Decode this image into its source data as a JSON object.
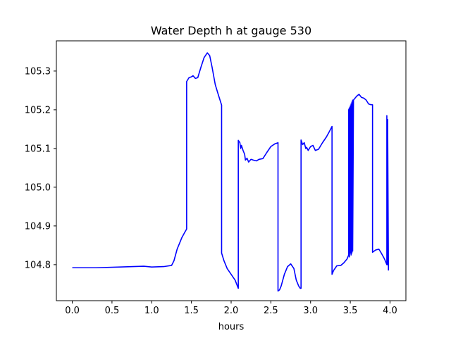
{
  "chart_data": {
    "type": "line",
    "title": "Water Depth h at gauge 530",
    "xlabel": "hours",
    "ylabel": "",
    "xlim": [
      -0.2,
      4.2
    ],
    "ylim": [
      104.707,
      105.378
    ],
    "xticks": [
      0.0,
      0.5,
      1.0,
      1.5,
      2.0,
      2.5,
      3.0,
      3.5,
      4.0
    ],
    "xtick_labels": [
      "0.0",
      "0.5",
      "1.0",
      "1.5",
      "2.0",
      "2.5",
      "3.0",
      "3.5",
      "4.0"
    ],
    "yticks": [
      104.8,
      104.9,
      105.0,
      105.1,
      105.2,
      105.3
    ],
    "ytick_labels": [
      "104.8",
      "104.9",
      "105.0",
      "105.1",
      "105.2",
      "105.3"
    ],
    "grid": false,
    "series": [
      {
        "color": "#0000ff",
        "x": [
          0.0,
          0.3,
          0.6,
          0.9,
          1.0,
          1.15,
          1.25,
          1.28,
          1.32,
          1.38,
          1.42,
          1.44,
          1.44,
          1.47,
          1.5,
          1.52,
          1.55,
          1.58,
          1.62,
          1.66,
          1.7,
          1.73,
          1.76,
          1.8,
          1.84,
          1.88,
          1.88,
          1.91,
          1.95,
          2.0,
          2.05,
          2.09,
          2.09,
          2.11,
          2.12,
          2.13,
          2.15,
          2.17,
          2.18,
          2.2,
          2.22,
          2.25,
          2.28,
          2.32,
          2.35,
          2.4,
          2.45,
          2.5,
          2.55,
          2.58,
          2.59,
          2.59,
          2.61,
          2.63,
          2.67,
          2.71,
          2.75,
          2.79,
          2.82,
          2.85,
          2.87,
          2.88,
          2.88,
          2.9,
          2.92,
          2.94,
          2.95,
          2.97,
          3.0,
          3.03,
          3.06,
          3.1,
          3.15,
          3.2,
          3.24,
          3.27,
          3.27,
          3.29,
          3.33,
          3.38,
          3.42,
          3.46,
          3.48,
          3.48,
          3.49,
          3.49,
          3.5,
          3.5,
          3.51,
          3.51,
          3.52,
          3.52,
          3.53,
          3.53,
          3.54,
          3.58,
          3.61,
          3.64,
          3.67,
          3.7,
          3.73,
          3.76,
          3.78,
          3.78,
          3.82,
          3.86,
          3.89,
          3.93,
          3.96,
          3.96,
          3.97,
          3.97,
          3.98,
          3.98
        ],
        "y": [
          104.792,
          104.792,
          104.794,
          104.796,
          104.794,
          104.795,
          104.798,
          104.81,
          104.84,
          104.87,
          104.885,
          104.892,
          105.273,
          105.283,
          105.285,
          105.288,
          105.281,
          105.283,
          105.31,
          105.335,
          105.347,
          105.34,
          105.31,
          105.265,
          105.238,
          105.212,
          104.83,
          104.81,
          104.79,
          104.775,
          104.76,
          104.739,
          105.121,
          105.115,
          105.1,
          105.108,
          105.095,
          105.085,
          105.07,
          105.075,
          105.065,
          105.072,
          105.07,
          105.068,
          105.072,
          105.074,
          105.09,
          105.105,
          105.112,
          105.114,
          105.115,
          104.732,
          104.735,
          104.745,
          104.775,
          104.795,
          104.802,
          104.79,
          104.76,
          104.745,
          104.739,
          104.739,
          105.122,
          105.11,
          105.115,
          105.1,
          105.103,
          105.095,
          105.105,
          105.108,
          105.095,
          105.098,
          105.115,
          105.13,
          105.145,
          105.157,
          104.775,
          104.785,
          104.797,
          104.798,
          104.805,
          104.815,
          104.825,
          105.2,
          105.205,
          104.82,
          105.21,
          104.83,
          105.215,
          104.825,
          105.22,
          104.83,
          105.225,
          104.835,
          105.225,
          105.235,
          105.24,
          105.232,
          105.23,
          105.225,
          105.215,
          105.213,
          105.213,
          104.832,
          104.838,
          104.84,
          104.83,
          104.815,
          104.8,
          105.185,
          104.8,
          105.175,
          104.79,
          104.785
        ]
      }
    ]
  }
}
